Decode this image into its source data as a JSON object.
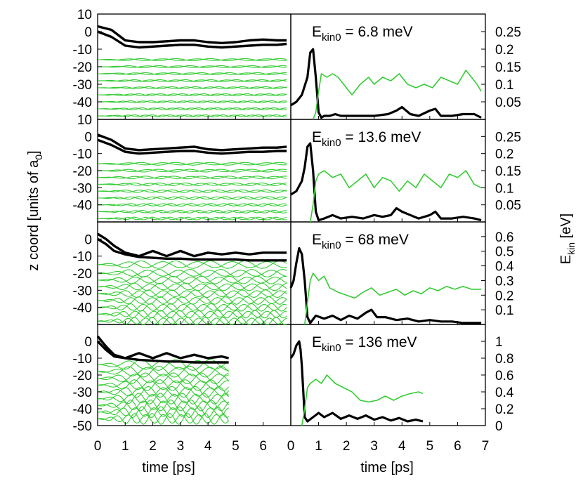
{
  "figure": {
    "left_ylabel": "z coord [units of a",
    "left_ylabel_sub": "0",
    "left_ylabel_end": "]",
    "right_ylabel": "E",
    "right_ylabel_sub": "kin",
    "right_ylabel_end": " [eV]",
    "xlabel_left": "time [ps]",
    "xlabel_right": "time [ps]",
    "colors": {
      "adsorbate": "#000000",
      "substrate": "#33cc33",
      "axes": "#000000"
    }
  },
  "chart_data": [
    {
      "type": "line",
      "panel": "z-trajectory",
      "row": 1,
      "xlim": [
        0,
        7
      ],
      "ylim": [
        -50,
        10
      ],
      "yticks": [
        10,
        0,
        -10,
        -20,
        -30,
        -40
      ],
      "series": [
        {
          "name": "adsorbate-atom-1",
          "color": "#000000",
          "x": [
            0,
            0.5,
            1,
            1.5,
            2,
            2.5,
            3,
            3.5,
            4,
            4.5,
            5,
            5.5,
            6,
            6.5,
            6.85
          ],
          "y": [
            3,
            1,
            -5,
            -6,
            -6,
            -5.5,
            -5,
            -5,
            -6,
            -6.5,
            -6,
            -5,
            -4.5,
            -5,
            -5
          ]
        },
        {
          "name": "adsorbate-atom-2",
          "color": "#000000",
          "x": [
            0,
            0.5,
            1,
            1.5,
            2,
            2.5,
            3,
            3.5,
            4,
            4.5,
            5,
            5.5,
            6,
            6.5,
            6.85
          ],
          "y": [
            0,
            -3,
            -8,
            -9,
            -8.5,
            -8,
            -7.5,
            -7.5,
            -8.5,
            -9,
            -8.5,
            -8,
            -7.5,
            -7.5,
            -7
          ]
        }
      ],
      "substrate_layers": {
        "color": "#33cc33",
        "levels": [
          -16,
          -20,
          -24,
          -28,
          -32,
          -36,
          -40,
          -44,
          -48
        ],
        "tmax": 6.85,
        "amplitude": 0.6
      }
    },
    {
      "type": "line",
      "panel": "z-trajectory",
      "row": 2,
      "xlim": [
        0,
        7
      ],
      "ylim": [
        -50,
        10
      ],
      "yticks": [
        10,
        0,
        -10,
        -20,
        -30,
        -40
      ],
      "series": [
        {
          "name": "adsorbate-atom-1",
          "color": "#000000",
          "x": [
            0,
            0.5,
            1,
            1.5,
            2,
            2.5,
            3,
            3.5,
            4,
            4.5,
            5,
            5.5,
            6,
            6.5,
            6.85
          ],
          "y": [
            1,
            -2,
            -7,
            -8,
            -7.5,
            -7,
            -6.5,
            -6,
            -7.5,
            -8,
            -7.5,
            -7,
            -6.5,
            -6.5,
            -6
          ]
        },
        {
          "name": "adsorbate-atom-2",
          "color": "#000000",
          "x": [
            0,
            0.5,
            1,
            1.5,
            2,
            2.5,
            3,
            3.5,
            4,
            4.5,
            5,
            5.5,
            6,
            6.5,
            6.85
          ],
          "y": [
            -2,
            -5,
            -9,
            -10,
            -9.5,
            -9,
            -8.5,
            -8.5,
            -9.5,
            -10,
            -9.5,
            -9,
            -9,
            -8.5,
            -8.5
          ]
        }
      ],
      "substrate_layers": {
        "color": "#33cc33",
        "levels": [
          -16,
          -20,
          -24,
          -28,
          -32,
          -36,
          -40,
          -44,
          -48
        ],
        "tmax": 6.85,
        "amplitude": 0.8
      }
    },
    {
      "type": "line",
      "panel": "z-trajectory",
      "row": 3,
      "xlim": [
        0,
        7
      ],
      "ylim": [
        -50,
        10
      ],
      "yticks": [
        0,
        -10,
        -20,
        -30,
        -40
      ],
      "series": [
        {
          "name": "adsorbate-atom-1",
          "color": "#000000",
          "x": [
            0,
            0.3,
            0.6,
            1,
            1.5,
            2,
            2.5,
            3,
            3.5,
            4,
            4.5,
            5,
            5.5,
            6,
            6.5,
            6.85
          ],
          "y": [
            3,
            0,
            -4,
            -8,
            -10,
            -7,
            -10,
            -7,
            -10,
            -8,
            -9,
            -8,
            -9,
            -8,
            -8,
            -8
          ]
        },
        {
          "name": "adsorbate-atom-2",
          "color": "#000000",
          "x": [
            0,
            0.3,
            0.6,
            1,
            1.5,
            2,
            2.5,
            3,
            3.5,
            4,
            4.5,
            5,
            5.5,
            6,
            6.5,
            6.85
          ],
          "y": [
            0,
            -3,
            -7,
            -9,
            -10.5,
            -11,
            -11.5,
            -11.5,
            -12,
            -12,
            -12,
            -12,
            -12.5,
            -12.5,
            -12.5,
            -12.5
          ]
        }
      ],
      "substrate_layers": {
        "color": "#33cc33",
        "levels": [
          -15,
          -20,
          -24,
          -28,
          -32,
          -36,
          -40,
          -44,
          -48
        ],
        "tmax": 6.85,
        "amplitude": 2.2
      }
    },
    {
      "type": "line",
      "panel": "z-trajectory",
      "row": 4,
      "xlim": [
        0,
        7
      ],
      "ylim": [
        -50,
        10
      ],
      "yticks": [
        0,
        -10,
        -20,
        -30,
        -40,
        -50
      ],
      "series": [
        {
          "name": "adsorbate-atom-1",
          "color": "#000000",
          "x": [
            0,
            0.3,
            0.6,
            1,
            1.5,
            2,
            2.5,
            3,
            3.5,
            4,
            4.5,
            4.75
          ],
          "y": [
            3,
            -3,
            -8,
            -10,
            -7,
            -10,
            -7,
            -10,
            -8,
            -10,
            -9,
            -10
          ]
        },
        {
          "name": "adsorbate-atom-2",
          "color": "#000000",
          "x": [
            0,
            0.3,
            0.6,
            1,
            1.5,
            2,
            2.5,
            3,
            3.5,
            4,
            4.5,
            4.75
          ],
          "y": [
            0,
            -5,
            -9,
            -10,
            -11,
            -11.5,
            -12,
            -12,
            -12.5,
            -12.5,
            -12.5,
            -12.5
          ]
        }
      ],
      "substrate_layers": {
        "color": "#33cc33",
        "levels": [
          -14,
          -18,
          -22,
          -26,
          -30,
          -34,
          -38,
          -42,
          -46
        ],
        "tmax": 4.75,
        "amplitude": 3.2
      }
    },
    {
      "type": "line",
      "panel": "kinetic-energy",
      "row": 1,
      "annotation": {
        "prefix": "E",
        "sub": "kin0",
        "text": " = 6.8 meV"
      },
      "xlim": [
        0,
        7
      ],
      "ylim": [
        0,
        0.3
      ],
      "yticks": [
        0.25,
        0.2,
        0.15,
        0.1,
        0.05
      ],
      "ytick_labels": [
        "0.25",
        "0.2",
        "0.15",
        "0.1",
        "0.05"
      ],
      "series": [
        {
          "name": "adsorbate-ekin",
          "color": "#000000",
          "width": 3.2,
          "x": [
            0,
            0.2,
            0.4,
            0.6,
            0.7,
            0.8,
            0.9,
            1.0,
            1.1,
            1.2,
            1.4,
            1.6,
            1.8,
            2.0,
            2.5,
            3.0,
            3.5,
            3.8,
            4.0,
            4.3,
            4.6,
            5.0,
            5.2,
            5.4,
            5.8,
            6.2,
            6.6,
            6.85
          ],
          "y": [
            0.04,
            0.05,
            0.07,
            0.12,
            0.19,
            0.2,
            0.12,
            0.02,
            0.005,
            0.01,
            0.01,
            0.015,
            0.01,
            0.01,
            0.01,
            0.01,
            0.015,
            0.025,
            0.035,
            0.015,
            0.01,
            0.025,
            0.03,
            0.01,
            0.01,
            0.015,
            0.015,
            0.005
          ]
        },
        {
          "name": "substrate-ekin",
          "color": "#33cc33",
          "width": 1.6,
          "x": [
            0.8,
            0.9,
            1.0,
            1.1,
            1.3,
            1.5,
            1.7,
            2.0,
            2.2,
            2.5,
            2.8,
            3.0,
            3.3,
            3.6,
            3.9,
            4.2,
            4.5,
            4.8,
            5.1,
            5.4,
            5.7,
            6.0,
            6.3,
            6.5,
            6.7,
            6.85
          ],
          "y": [
            0.0,
            0.02,
            0.08,
            0.13,
            0.12,
            0.13,
            0.12,
            0.09,
            0.07,
            0.1,
            0.12,
            0.1,
            0.12,
            0.11,
            0.13,
            0.1,
            0.09,
            0.1,
            0.09,
            0.12,
            0.11,
            0.1,
            0.14,
            0.12,
            0.1,
            0.08
          ]
        }
      ]
    },
    {
      "type": "line",
      "panel": "kinetic-energy",
      "row": 2,
      "annotation": {
        "prefix": "E",
        "sub": "kin0",
        "text": " = 13.6 meV"
      },
      "xlim": [
        0,
        7
      ],
      "ylim": [
        0,
        0.3
      ],
      "yticks": [
        0.25,
        0.2,
        0.15,
        0.1,
        0.05
      ],
      "ytick_labels": [
        "0.25",
        "0.2",
        "0.15",
        "0.1",
        "0.05"
      ],
      "series": [
        {
          "name": "adsorbate-ekin",
          "color": "#000000",
          "width": 3.2,
          "x": [
            0,
            0.2,
            0.4,
            0.5,
            0.6,
            0.7,
            0.8,
            0.9,
            1.0,
            1.2,
            1.5,
            1.8,
            2.2,
            2.6,
            3.0,
            3.3,
            3.6,
            3.8,
            4.0,
            4.3,
            4.6,
            5.0,
            5.2,
            5.4,
            5.8,
            6.2,
            6.6,
            6.85
          ],
          "y": [
            0.08,
            0.09,
            0.12,
            0.16,
            0.22,
            0.23,
            0.15,
            0.03,
            0.005,
            0.01,
            0.02,
            0.01,
            0.015,
            0.01,
            0.02,
            0.015,
            0.02,
            0.04,
            0.03,
            0.02,
            0.01,
            0.02,
            0.03,
            0.01,
            0.01,
            0.015,
            0.01,
            0.005
          ]
        },
        {
          "name": "substrate-ekin",
          "color": "#33cc33",
          "width": 1.6,
          "x": [
            0.7,
            0.8,
            0.9,
            1.0,
            1.2,
            1.5,
            1.8,
            2.1,
            2.4,
            2.7,
            3.0,
            3.3,
            3.6,
            3.9,
            4.2,
            4.5,
            4.8,
            5.1,
            5.4,
            5.7,
            6.0,
            6.3,
            6.6,
            6.85
          ],
          "y": [
            0.0,
            0.05,
            0.12,
            0.14,
            0.15,
            0.13,
            0.14,
            0.1,
            0.12,
            0.14,
            0.1,
            0.13,
            0.12,
            0.09,
            0.12,
            0.1,
            0.14,
            0.12,
            0.1,
            0.14,
            0.13,
            0.15,
            0.11,
            0.1
          ]
        }
      ]
    },
    {
      "type": "line",
      "panel": "kinetic-energy",
      "row": 3,
      "annotation": {
        "prefix": "E",
        "sub": "kin0",
        "text": " = 68 meV"
      },
      "xlim": [
        0,
        7
      ],
      "ylim": [
        0,
        0.7
      ],
      "yticks": [
        0.6,
        0.5,
        0.4,
        0.3,
        0.2,
        0.1
      ],
      "ytick_labels": [
        "0.6",
        "0.5",
        "0.4",
        "0.3",
        "0.2",
        "0.1"
      ],
      "series": [
        {
          "name": "adsorbate-ekin",
          "color": "#000000",
          "width": 3.2,
          "x": [
            0,
            0.1,
            0.2,
            0.3,
            0.4,
            0.5,
            0.6,
            0.7,
            0.9,
            1.2,
            1.5,
            1.8,
            2.1,
            2.4,
            2.7,
            2.9,
            3.1,
            3.4,
            3.8,
            4.2,
            4.6,
            5.0,
            5.4,
            5.8,
            6.2,
            6.6,
            6.85
          ],
          "y": [
            0.25,
            0.3,
            0.42,
            0.52,
            0.48,
            0.3,
            0.05,
            0.01,
            0.06,
            0.04,
            0.06,
            0.03,
            0.06,
            0.04,
            0.08,
            0.1,
            0.05,
            0.05,
            0.03,
            0.04,
            0.02,
            0.03,
            0.02,
            0.02,
            0.01,
            0.01,
            0.01
          ]
        },
        {
          "name": "substrate-ekin",
          "color": "#33cc33",
          "width": 1.6,
          "x": [
            0.5,
            0.6,
            0.7,
            0.8,
            1.0,
            1.2,
            1.4,
            1.7,
            2.0,
            2.3,
            2.6,
            2.9,
            3.2,
            3.5,
            3.8,
            4.1,
            4.4,
            4.7,
            5.0,
            5.3,
            5.6,
            5.9,
            6.2,
            6.5,
            6.85
          ],
          "y": [
            0.0,
            0.15,
            0.3,
            0.35,
            0.3,
            0.33,
            0.25,
            0.22,
            0.2,
            0.18,
            0.22,
            0.25,
            0.2,
            0.22,
            0.24,
            0.2,
            0.23,
            0.21,
            0.25,
            0.23,
            0.26,
            0.24,
            0.26,
            0.24,
            0.24
          ]
        }
      ]
    },
    {
      "type": "line",
      "panel": "kinetic-energy",
      "row": 4,
      "annotation": {
        "prefix": "E",
        "sub": "kin0",
        "text": " = 136 meV"
      },
      "xlim": [
        0,
        7
      ],
      "ylim": [
        0,
        1.2
      ],
      "yticks": [
        1,
        0.8,
        0.6,
        0.4,
        0.2,
        0
      ],
      "ytick_labels": [
        "1",
        "0.8",
        "0.6",
        "0.4",
        "0.2",
        "0"
      ],
      "xticks": [
        0,
        1,
        2,
        3,
        4,
        5,
        6,
        7
      ],
      "series": [
        {
          "name": "adsorbate-ekin",
          "color": "#000000",
          "width": 3.2,
          "x": [
            0,
            0.1,
            0.2,
            0.3,
            0.35,
            0.4,
            0.5,
            0.6,
            0.8,
            1.0,
            1.2,
            1.5,
            1.8,
            2.1,
            2.4,
            2.7,
            3.0,
            3.3,
            3.6,
            3.9,
            4.2,
            4.5,
            4.75
          ],
          "y": [
            0.8,
            0.85,
            0.95,
            1.0,
            0.9,
            0.7,
            0.1,
            0.05,
            0.1,
            0.15,
            0.1,
            0.15,
            0.08,
            0.12,
            0.08,
            0.12,
            0.07,
            0.1,
            0.06,
            0.09,
            0.05,
            0.07,
            0.05
          ]
        },
        {
          "name": "substrate-ekin",
          "color": "#33cc33",
          "width": 1.6,
          "x": [
            0.4,
            0.5,
            0.6,
            0.7,
            0.9,
            1.1,
            1.3,
            1.6,
            1.9,
            2.2,
            2.5,
            2.8,
            3.1,
            3.4,
            3.7,
            4.0,
            4.3,
            4.6,
            4.75
          ],
          "y": [
            0.0,
            0.2,
            0.45,
            0.5,
            0.55,
            0.5,
            0.6,
            0.5,
            0.45,
            0.4,
            0.3,
            0.28,
            0.3,
            0.35,
            0.3,
            0.35,
            0.38,
            0.4,
            0.38
          ]
        }
      ]
    }
  ],
  "xticks_labels": [
    "0",
    "1",
    "2",
    "3",
    "4",
    "5",
    "6",
    "7"
  ]
}
